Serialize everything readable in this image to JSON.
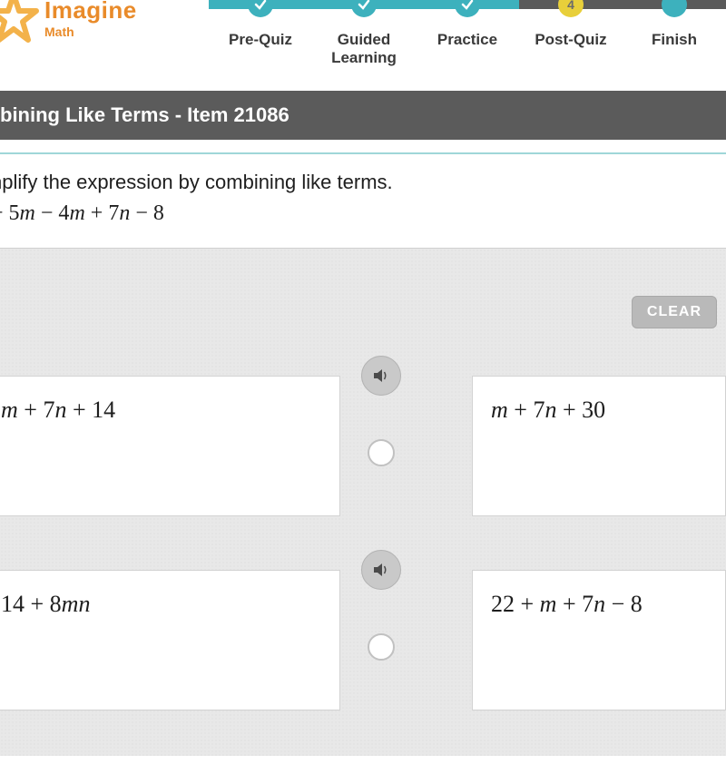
{
  "logo": {
    "main": "Imagine",
    "sub": "Math",
    "color": "#e98b2a"
  },
  "nav": {
    "steps": [
      {
        "label": "Pre-Quiz",
        "bar_color": "#3db1bd",
        "node_color": "#3db1bd",
        "node_text": ""
      },
      {
        "label": "Guided\nLearning",
        "bar_color": "#3db1bd",
        "node_color": "#3db1bd",
        "node_text": ""
      },
      {
        "label": "Practice",
        "bar_color": "#3db1bd",
        "node_color": "#3db1bd",
        "node_text": ""
      },
      {
        "label": "Post-Quiz",
        "bar_color": "#5a5a5a",
        "node_color": "#e8cf3a",
        "node_text": "4"
      },
      {
        "label": "Finish",
        "bar_color": "#5a5a5a",
        "node_color": "#3db1bd",
        "node_text": ""
      }
    ]
  },
  "title_bar": {
    "text": "bining Like Terms - Item 21086",
    "bg": "#5b5b5b"
  },
  "question": {
    "prompt": "nplify the expression by combining like terms.",
    "expression_html": "+ 5<span class='m'>m</span> − 4<span class='m'>m</span> + 7<span class='m'>n</span> − 8"
  },
  "clear_label": "CLEAR",
  "answers": [
    {
      "html": "<span class='m'>m</span> + 7<span class='m'>n</span> + 14"
    },
    {
      "html": "<span class='m'>m</span> + 7<span class='m'>n</span> + 30"
    },
    {
      "html": "14 + 8<span class='m'>mn</span>"
    },
    {
      "html": "22 + <span class='m'>m</span> + 7<span class='m'>n</span> − 8"
    }
  ],
  "colors": {
    "panel_bg": "#e8e8e8",
    "card_bg": "#ffffff",
    "divider": "#9fd7d8"
  }
}
